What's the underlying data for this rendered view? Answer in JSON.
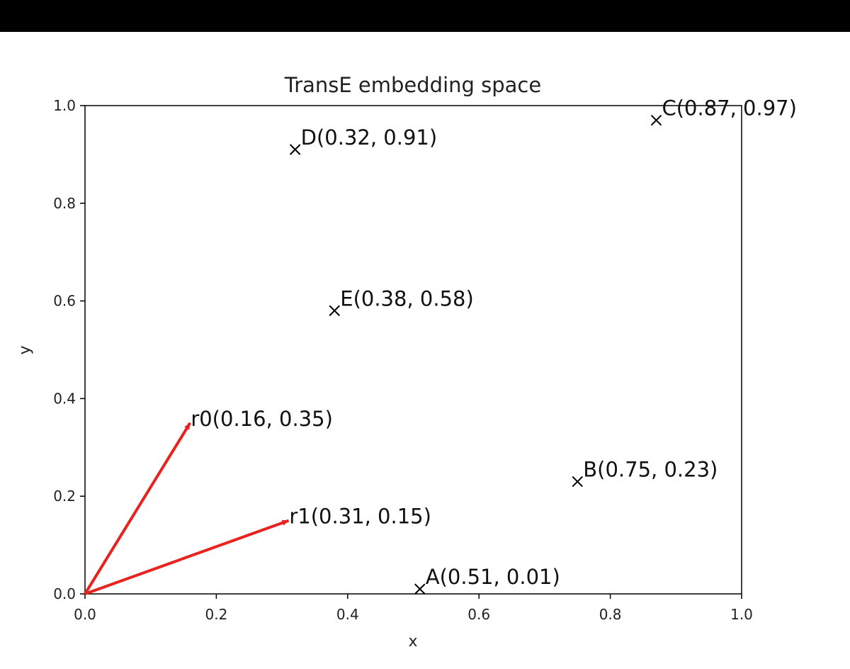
{
  "chart_data": {
    "type": "scatter",
    "title": "TransE embedding space",
    "xlabel": "x",
    "ylabel": "y",
    "xlim": [
      0.0,
      1.0
    ],
    "ylim": [
      0.0,
      1.0
    ],
    "xticks": [
      "0.0",
      "0.2",
      "0.4",
      "0.6",
      "0.8",
      "1.0"
    ],
    "yticks": [
      "0.0",
      "0.2",
      "0.4",
      "0.6",
      "0.8",
      "1.0"
    ],
    "grid": false,
    "colors": {
      "points": "#000000",
      "vectors": "#e8221e"
    },
    "points": [
      {
        "label": "A(0.51, 0.01)",
        "x": 0.51,
        "y": 0.01
      },
      {
        "label": "B(0.75, 0.23)",
        "x": 0.75,
        "y": 0.23
      },
      {
        "label": "C(0.87, 0.97)",
        "x": 0.87,
        "y": 0.97
      },
      {
        "label": "D(0.32, 0.91)",
        "x": 0.32,
        "y": 0.91
      },
      {
        "label": "E(0.38, 0.58)",
        "x": 0.38,
        "y": 0.58
      }
    ],
    "vectors": [
      {
        "label": "r0(0.16, 0.35)",
        "x0": 0,
        "y0": 0,
        "x": 0.16,
        "y": 0.35
      },
      {
        "label": "r1(0.31, 0.15)",
        "x0": 0,
        "y0": 0,
        "x": 0.31,
        "y": 0.15
      }
    ]
  }
}
